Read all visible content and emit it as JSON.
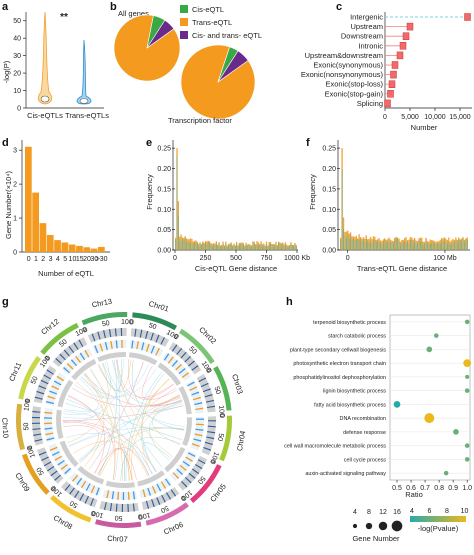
{
  "panels": {
    "a": {
      "letter": "a",
      "ylabel": "-log(P)",
      "yticks": [
        "50",
        "40",
        "30",
        "20",
        "10",
        "0"
      ],
      "categories": [
        "Cis-eQTLs",
        "Trans-eQTLs"
      ],
      "significance": "**",
      "colors": {
        "cis": "#f0a030",
        "trans": "#2f8fd0"
      }
    },
    "b": {
      "letter": "b",
      "pie_titles": [
        "All genes",
        "Transcription factor"
      ],
      "legend": [
        {
          "label": "Cis-eQTL",
          "color": "#3aa845"
        },
        {
          "label": "Trans-eQTL",
          "color": "#f39a1f"
        },
        {
          "label": "Cis- and trans- eQTL",
          "color": "#6a2a8a"
        }
      ],
      "pies": [
        {
          "slices": [
            {
              "name": "Trans-eQTL",
              "value": 0.88,
              "color": "#f39a1f"
            },
            {
              "name": "Cis-eQTL",
              "value": 0.06,
              "color": "#3aa845"
            },
            {
              "name": "Cis- and trans- eQTL",
              "value": 0.06,
              "color": "#6a2a8a"
            }
          ]
        },
        {
          "slices": [
            {
              "name": "Trans-eQTL",
              "value": 0.9,
              "color": "#f39a1f"
            },
            {
              "name": "Cis-eQTL",
              "value": 0.04,
              "color": "#3aa845"
            },
            {
              "name": "Cis- and trans- eQTL",
              "value": 0.06,
              "color": "#6a2a8a"
            }
          ]
        }
      ]
    },
    "c": {
      "letter": "c",
      "xlabel": "Number",
      "xticks": [
        "0",
        "5,000",
        "10,000",
        "15,000"
      ]
    },
    "d": {
      "letter": "d",
      "ylabel": "Gene Number(×10⁴)",
      "xlabel": "Number of eQTL",
      "yticks": [
        "0",
        "1",
        "2",
        "3"
      ],
      "xticks": [
        "0",
        "1",
        "2",
        "3",
        "4",
        "5",
        "10",
        "15",
        "20",
        "30",
        ">30"
      ]
    },
    "e": {
      "letter": "e",
      "ylabel": "Frequency",
      "xlabel": "Cis-eQTL Gene distance",
      "yticks": [
        "0.00",
        "0.05",
        "0.10",
        "0.15",
        "0.20",
        "0.25"
      ],
      "xticks": [
        "0",
        "250",
        "500",
        "750",
        "1000 Kb"
      ]
    },
    "f": {
      "letter": "f",
      "ylabel": "Frequency",
      "xlabel": "Trans-eQTL Gene distance",
      "yticks": [
        "0.00",
        "0.05",
        "0.10",
        "0.15",
        "0.20",
        "0.25"
      ],
      "xticks": [
        "0",
        "100 Mb"
      ]
    },
    "g": {
      "letter": "g",
      "chromosomes": [
        "Chr01",
        "Chr02",
        "Chr03",
        "Chr04",
        "Chr05",
        "Chr06",
        "Chr07",
        "Chr08",
        "Chr09",
        "Chr10",
        "Chr11",
        "Chr12",
        "Chr13"
      ],
      "scale_labels": [
        "0",
        "50",
        "100"
      ]
    },
    "h": {
      "letter": "h",
      "xlabel": "Ratio",
      "xticks": [
        "0.5",
        "0.6",
        "0.7",
        "0.8",
        "0.9",
        "1.0"
      ],
      "size_legend_title": "Gene Number",
      "size_legend_values": [
        "4",
        "8",
        "12",
        "16"
      ],
      "color_legend_title": "-log(Pvalue)",
      "color_legend_values": [
        "4",
        "6",
        "8",
        "10"
      ]
    }
  },
  "chart_data": [
    {
      "panel": "a",
      "type": "violin",
      "categories": [
        "Cis-eQTLs",
        "Trans-eQTLs"
      ],
      "ylabel": "-log(P)",
      "ylim": [
        0,
        55
      ],
      "series": [
        {
          "name": "Cis-eQTLs",
          "median": 5,
          "max": 52
        },
        {
          "name": "Trans-eQTLs",
          "median": 5,
          "max": 38
        }
      ]
    },
    {
      "panel": "b",
      "type": "pie",
      "titles": [
        "All genes",
        "Transcription factor"
      ],
      "series": [
        {
          "name": "All genes",
          "values": {
            "Trans-eQTL": 0.88,
            "Cis-eQTL": 0.06,
            "Cis- and trans- eQTL": 0.06
          }
        },
        {
          "name": "Transcription factor",
          "values": {
            "Trans-eQTL": 0.9,
            "Cis-eQTL": 0.04,
            "Cis- and trans- eQTL": 0.06
          }
        }
      ]
    },
    {
      "panel": "c",
      "type": "bar",
      "orientation": "horizontal",
      "categories": [
        "Intergenic",
        "Upstream",
        "Downstream",
        "Intronic",
        "Upstream&downstream",
        "Exonic(synonymous)",
        "Exonic(nonsynonymous)",
        "Exonic(stop-loss)",
        "Exonic(stop-gain)",
        "Splicing"
      ],
      "values": [
        16500,
        5000,
        4200,
        3600,
        3000,
        2000,
        1700,
        1400,
        1100,
        500
      ],
      "xlabel": "Number",
      "xlim": [
        0,
        17000
      ]
    },
    {
      "panel": "d",
      "type": "bar",
      "categories": [
        "0",
        "1",
        "2",
        "3",
        "4",
        "5",
        "10",
        "15",
        "20",
        "30",
        ">30"
      ],
      "values": [
        3.1,
        1.75,
        0.85,
        0.5,
        0.35,
        0.28,
        0.22,
        0.18,
        0.14,
        0.1,
        0.15
      ],
      "ylabel": "Gene Number(×10⁴)",
      "xlabel": "Number of eQTL",
      "ylim": [
        0,
        3.3
      ]
    },
    {
      "panel": "e",
      "type": "bar",
      "xlabel": "Cis-eQTL Gene distance",
      "ylabel": "Frequency",
      "ylim": [
        0,
        0.27
      ],
      "xlim": [
        0,
        1000
      ],
      "profile": {
        "peak_x": 20,
        "peak_y": 0.25,
        "second_peak_y": 0.12,
        "tail_y": 0.01
      }
    },
    {
      "panel": "f",
      "type": "bar",
      "xlabel": "Trans-eQTL Gene distance",
      "ylabel": "Frequency",
      "ylim": [
        0,
        0.27
      ],
      "profile": {
        "peak_x": 5,
        "peak_y": 0.25,
        "second_peak_y": 0.08,
        "tail_y": 0.02
      }
    },
    {
      "panel": "h",
      "type": "scatter",
      "categories": [
        "terpenoid biosynthetic process",
        "starch catabolic process",
        "plant-type secondary cellwall biogenesis",
        "photosynthetic electron transport chain",
        "phosphatidylinositol dephosphorylation",
        "lignin biosynthetic process",
        "fatty acid biosynthetic process",
        "DNA recombination",
        "defense response",
        "cell wall macromolecule metabolic process",
        "cell cycle process",
        "auxin-activated signaling pathway"
      ],
      "ratio": [
        1.0,
        0.78,
        0.73,
        1.0,
        1.0,
        1.0,
        0.5,
        0.73,
        0.92,
        1.0,
        1.0,
        0.85
      ],
      "gene_number": [
        4,
        4,
        6,
        10,
        3,
        4,
        8,
        14,
        6,
        4,
        4,
        4
      ],
      "neg_log_p": [
        6,
        6,
        6,
        10,
        6,
        6,
        4,
        10,
        6,
        6,
        6,
        6
      ],
      "xlabel": "Ratio",
      "xlim": [
        0.45,
        1.02
      ]
    }
  ]
}
